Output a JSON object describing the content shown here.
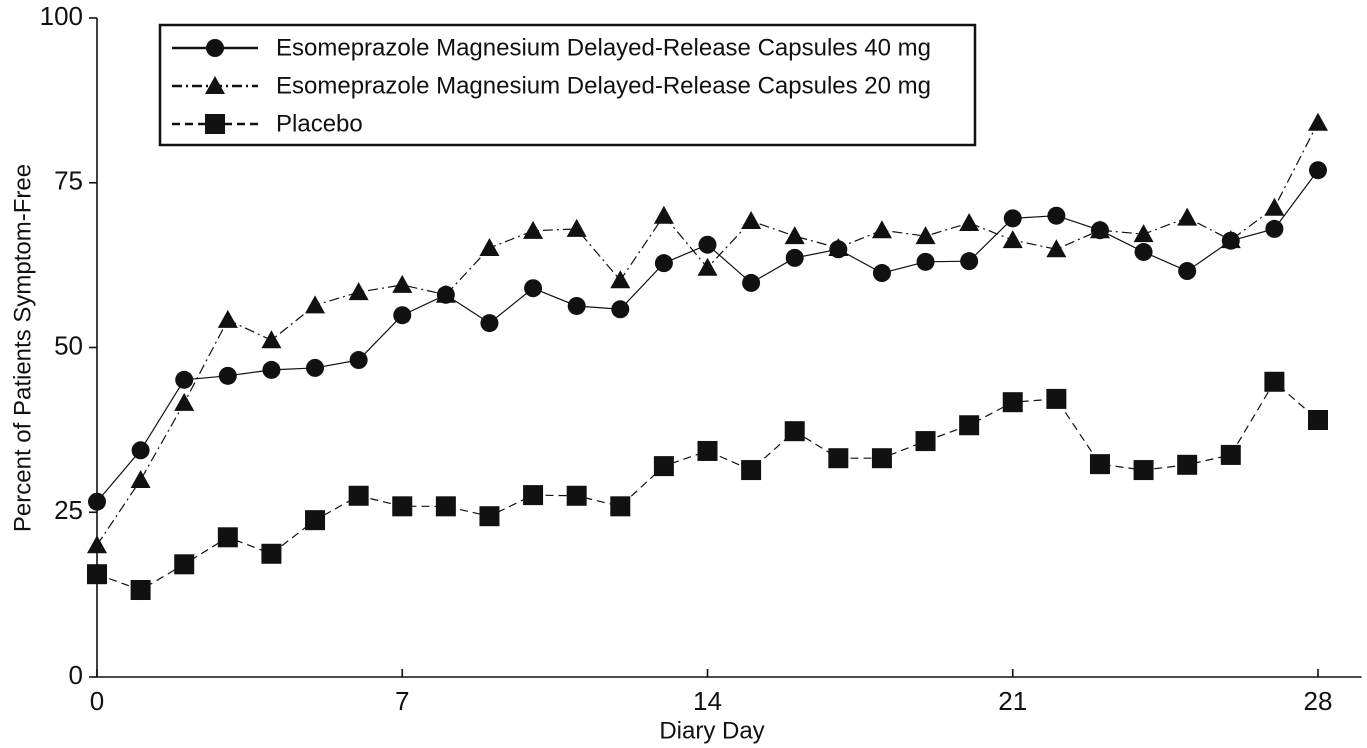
{
  "chart_data": {
    "type": "line",
    "x_label": "Diary Day",
    "y_label": "Percent of Patients Symptom-Free",
    "x": [
      0,
      1,
      2,
      3,
      4,
      5,
      6,
      7,
      8,
      9,
      10,
      11,
      12,
      13,
      14,
      15,
      16,
      17,
      18,
      19,
      20,
      21,
      22,
      23,
      24,
      25,
      26,
      27,
      28
    ],
    "series": [
      {
        "name": "Esomeprazole Magnesium Delayed-Release  Capsules 40 mg",
        "color": "#111111",
        "marker": "circle",
        "dash": "solid",
        "values": [
          26.6,
          34.4,
          45.1,
          45.7,
          46.6,
          46.9,
          48.1,
          54.9,
          58.0,
          53.7,
          59.0,
          56.3,
          55.8,
          62.8,
          65.6,
          59.8,
          63.6,
          64.9,
          61.3,
          63.0,
          63.1,
          69.6,
          70.0,
          67.8,
          64.5,
          61.6,
          66.2,
          68.0,
          76.9
        ]
      },
      {
        "name": "Esomeprazole Magnesium Delayed-Release  Capsules 20 mg",
        "color": "#111111",
        "marker": "triangle",
        "dash": "dashdot",
        "values": [
          20.0,
          29.9,
          41.6,
          54.2,
          51.1,
          56.4,
          58.4,
          59.5,
          58.0,
          65.1,
          67.7,
          68.0,
          60.2,
          70.0,
          62.1,
          69.2,
          66.9,
          65.1,
          67.8,
          66.9,
          68.9,
          66.3,
          64.9,
          67.8,
          67.2,
          69.7,
          66.3,
          71.2,
          84.1
        ]
      },
      {
        "name": "Placebo",
        "color": "#111111",
        "marker": "square",
        "dash": "dashed",
        "values": [
          15.6,
          13.2,
          17.1,
          21.2,
          18.7,
          23.8,
          27.5,
          25.9,
          25.9,
          24.4,
          27.6,
          27.5,
          25.9,
          32.0,
          34.3,
          31.4,
          37.3,
          33.2,
          33.2,
          35.8,
          38.2,
          41.7,
          42.2,
          32.3,
          31.4,
          32.2,
          33.7,
          44.8,
          39.0
        ]
      }
    ],
    "xlim": [
      0,
      29
    ],
    "xticks": [
      0,
      7,
      14,
      21,
      28
    ],
    "ylim": [
      0,
      100
    ],
    "yticks": [
      0,
      25,
      50,
      75,
      100
    ],
    "grid": false,
    "legend": "top-left"
  }
}
